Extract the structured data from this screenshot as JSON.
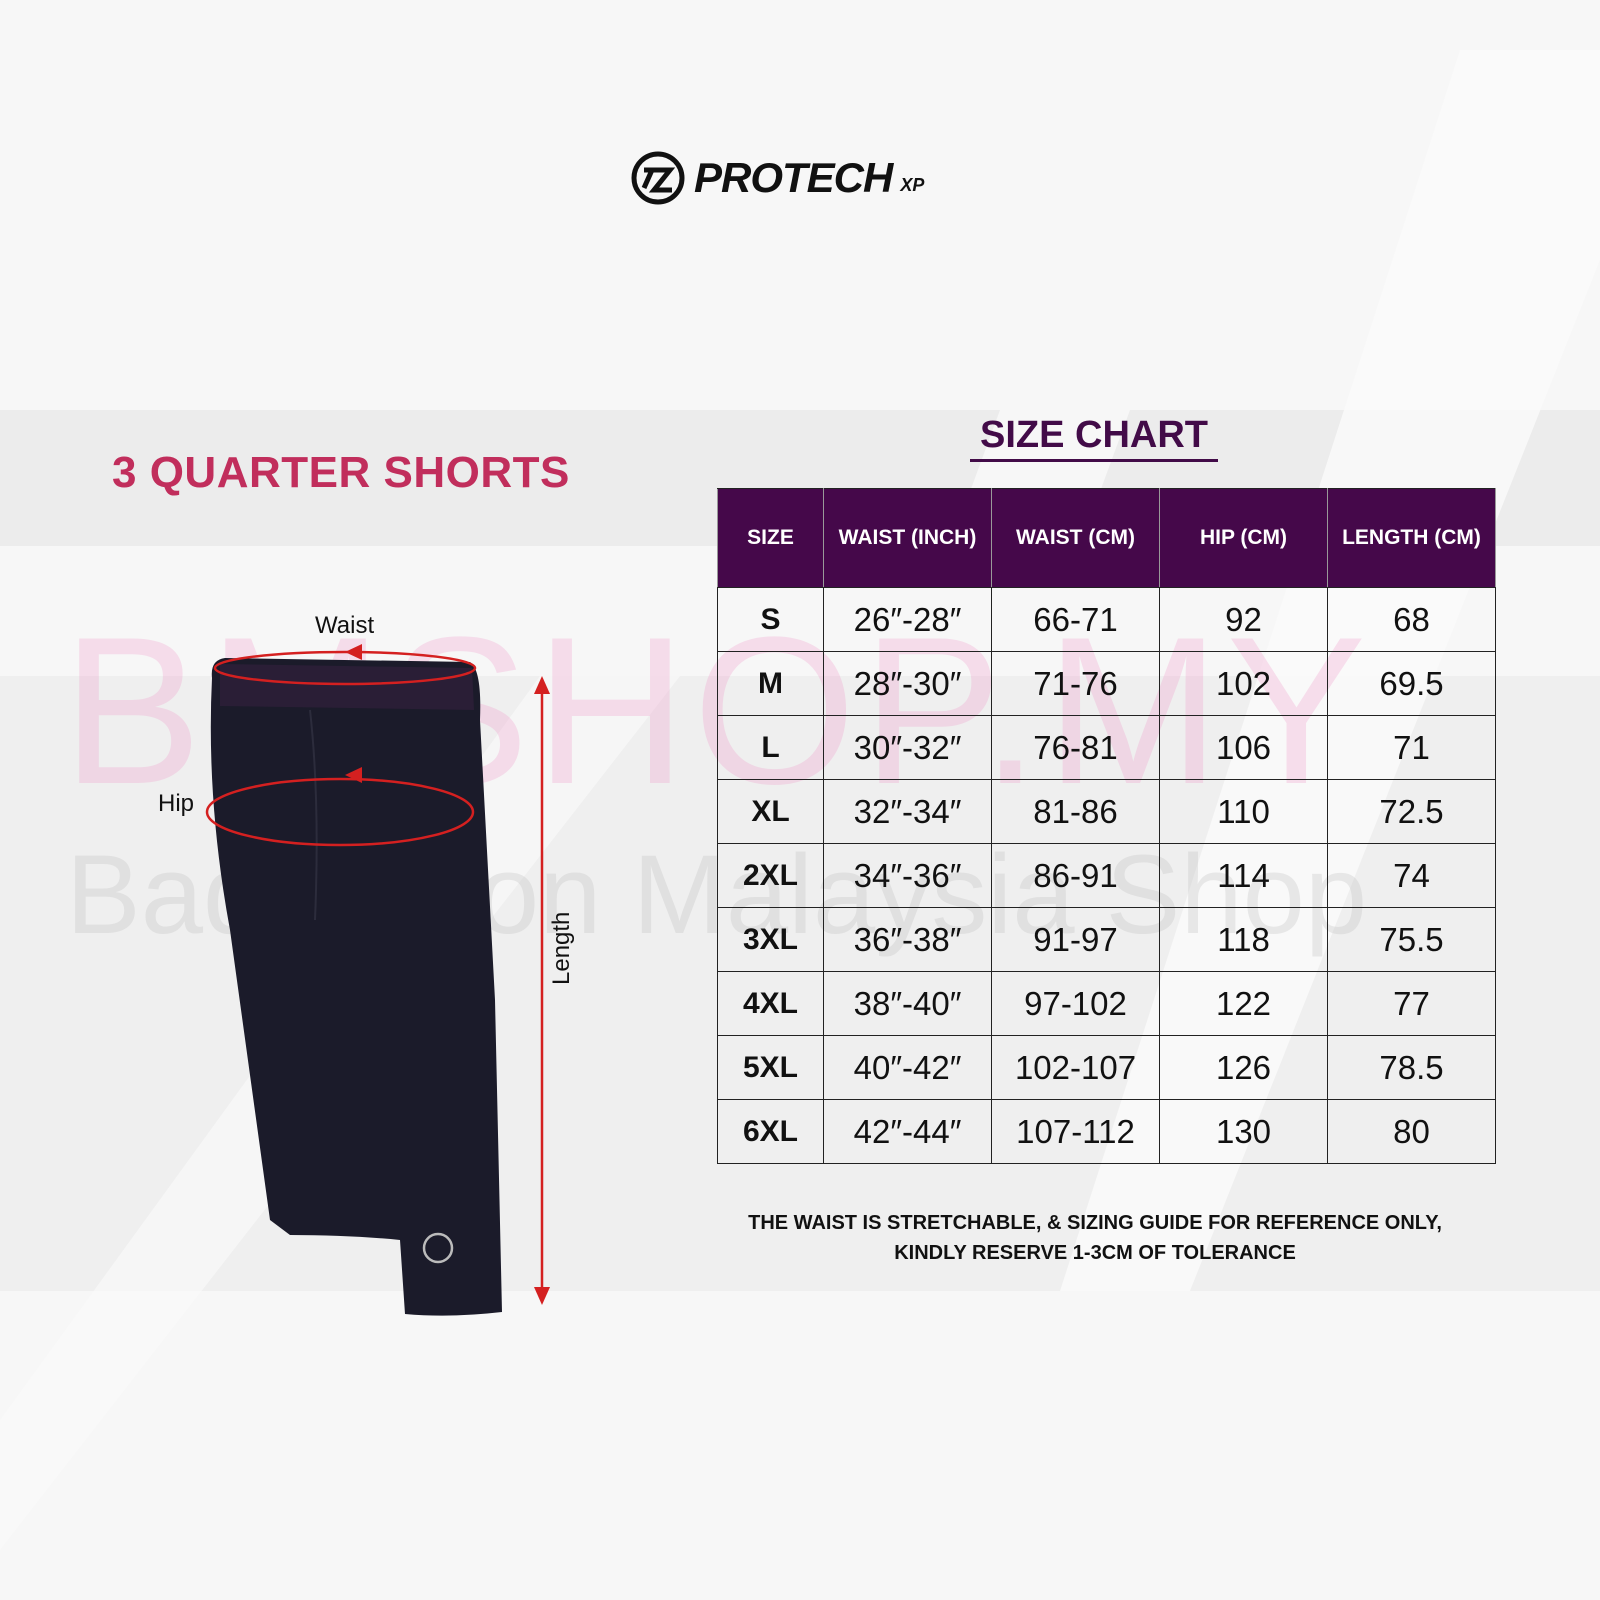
{
  "brand": {
    "name": "PROTECH",
    "suffix": "XP"
  },
  "product_title": "3 QUARTER SHORTS",
  "chart_title": "SIZE CHART",
  "watermark": {
    "line1": "BMSHOP.MY",
    "line2": "Badminton Malaysia Shop"
  },
  "diagram_labels": {
    "waist": "Waist",
    "hip": "Hip",
    "length": "Length"
  },
  "colors": {
    "header": "#45084a",
    "title": "#c12e5c",
    "measure": "#d42020"
  },
  "table": {
    "headers": [
      "SIZE",
      "WAIST (INCH)",
      "WAIST (CM)",
      "HIP (CM)",
      "LENGTH (CM)"
    ],
    "rows": [
      [
        "S",
        "26″-28″",
        "66-71",
        "92",
        "68"
      ],
      [
        "M",
        "28″-30″",
        "71-76",
        "102",
        "69.5"
      ],
      [
        "L",
        "30″-32″",
        "76-81",
        "106",
        "71"
      ],
      [
        "XL",
        "32″-34″",
        "81-86",
        "110",
        "72.5"
      ],
      [
        "2XL",
        "34″-36″",
        "86-91",
        "114",
        "74"
      ],
      [
        "3XL",
        "36″-38″",
        "91-97",
        "118",
        "75.5"
      ],
      [
        "4XL",
        "38″-40″",
        "97-102",
        "122",
        "77"
      ],
      [
        "5XL",
        "40″-42″",
        "102-107",
        "126",
        "78.5"
      ],
      [
        "6XL",
        "42″-44″",
        "107-112",
        "130",
        "80"
      ]
    ]
  },
  "note": {
    "line1": "THE WAIST IS STRETCHABLE, & SIZING GUIDE FOR REFERENCE ONLY,",
    "line2": "KINDLY RESERVE 1-3CM OF TOLERANCE"
  }
}
